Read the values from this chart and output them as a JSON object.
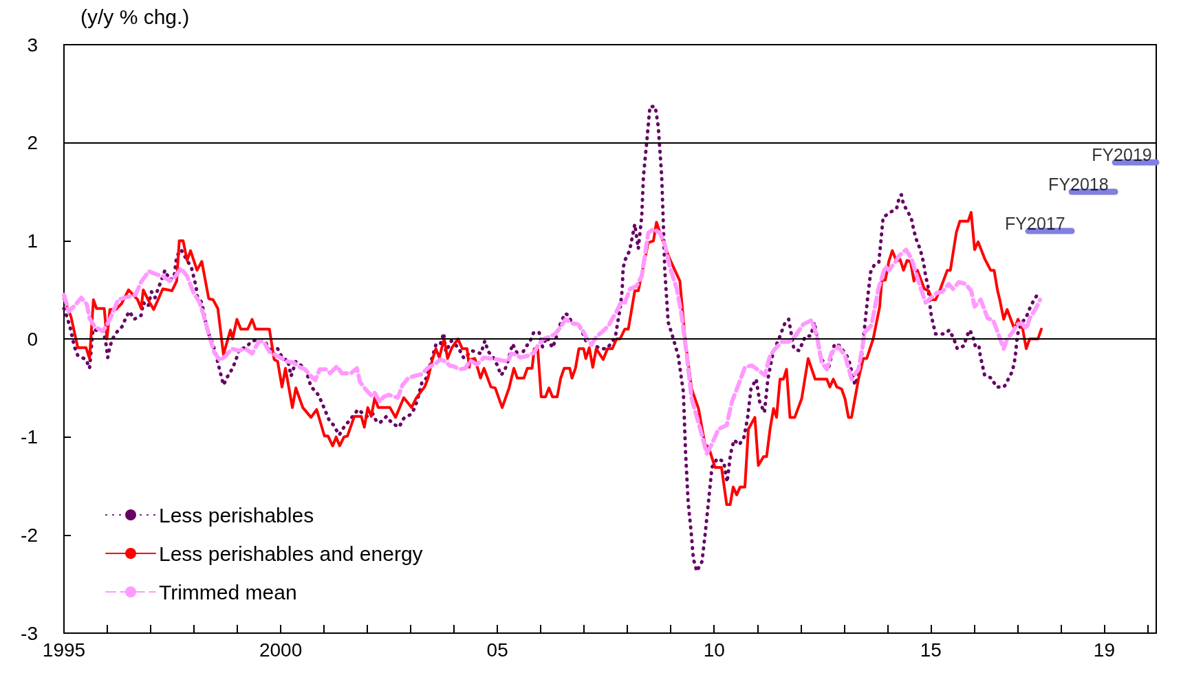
{
  "chart_data": {
    "type": "line",
    "ylabel": "(y/y % chg.)",
    "xlim": [
      1995,
      2020.2
    ],
    "ylim": [
      -3,
      3
    ],
    "yticks": [
      -3,
      -2,
      -1,
      0,
      1,
      2,
      3
    ],
    "xticks": [
      {
        "value": 1995,
        "label": "1995"
      },
      {
        "value": 1996,
        "label": null
      },
      {
        "value": 1997,
        "label": null
      },
      {
        "value": 1998,
        "label": null
      },
      {
        "value": 1999,
        "label": null
      },
      {
        "value": 2000,
        "label": "2000"
      },
      {
        "value": 2001,
        "label": null
      },
      {
        "value": 2002,
        "label": null
      },
      {
        "value": 2003,
        "label": null
      },
      {
        "value": 2004,
        "label": null
      },
      {
        "value": 2005,
        "label": "05"
      },
      {
        "value": 2006,
        "label": null
      },
      {
        "value": 2007,
        "label": null
      },
      {
        "value": 2008,
        "label": null
      },
      {
        "value": 2009,
        "label": null
      },
      {
        "value": 2010,
        "label": "10"
      },
      {
        "value": 2011,
        "label": null
      },
      {
        "value": 2012,
        "label": null
      },
      {
        "value": 2013,
        "label": null
      },
      {
        "value": 2014,
        "label": null
      },
      {
        "value": 2015,
        "label": "15"
      },
      {
        "value": 2016,
        "label": null
      },
      {
        "value": 2017,
        "label": null
      },
      {
        "value": 2018,
        "label": null
      },
      {
        "value": 2019,
        "label": "19"
      },
      {
        "value": 2020,
        "label": null
      }
    ],
    "grid": false,
    "legend": "bottom left",
    "marker": "none",
    "ref_lines": [
      {
        "axis": "y",
        "value": 0,
        "color": "#000000"
      },
      {
        "axis": "y",
        "value": 2,
        "color": "#000000"
      }
    ],
    "annotations": [
      {
        "text": "FY2017",
        "x": 2017.25,
        "y": 1.1
      },
      {
        "text": "FY2018",
        "x": 2018.25,
        "y": 1.5
      },
      {
        "text": "FY2019",
        "x": 2019.25,
        "y": 1.8
      }
    ],
    "series": [
      {
        "name": "Less perishables",
        "color": "#660066",
        "line_style": "dotted",
        "x": [
          1995.0,
          1995.08,
          1995.14,
          1995.24,
          1995.32,
          1995.51,
          1995.59,
          1995.63,
          1995.67,
          1995.8,
          1995.9,
          1995.96,
          1996.01,
          1996.06,
          1996.12,
          1996.22,
          1996.35,
          1996.43,
          1996.51,
          1996.62,
          1996.78,
          1996.83,
          1996.94,
          1997.02,
          1997.1,
          1997.17,
          1997.25,
          1997.33,
          1997.44,
          1997.54,
          1997.6,
          1997.7,
          1997.84,
          1997.94,
          1997.99,
          1998.05,
          1998.07,
          1998.18,
          1998.26,
          1998.31,
          1998.39,
          1998.49,
          1998.6,
          1998.68,
          1998.79,
          1998.89,
          1998.97,
          1999.05,
          1999.19,
          1999.32,
          1999.48,
          1999.64,
          1999.74,
          1999.85,
          1999.93,
          2000.06,
          2000.16,
          2000.24,
          2000.35,
          2000.56,
          2000.64,
          2000.7,
          2000.8,
          2000.88,
          2000.96,
          2001.12,
          2001.22,
          2001.35,
          2001.46,
          2001.7,
          2001.78,
          2001.99,
          2002.12,
          2002.22,
          2002.3,
          2002.44,
          2002.57,
          2002.73,
          2002.84,
          2003.0,
          2003.07,
          2003.15,
          2003.26,
          2003.36,
          2003.47,
          2003.58,
          2003.68,
          2003.76,
          2003.81,
          2003.94,
          2004.1,
          2004.23,
          2004.41,
          2004.62,
          2004.71,
          2004.79,
          2004.92,
          2005.01,
          2005.08,
          2005.16,
          2005.24,
          2005.35,
          2005.45,
          2005.53,
          2005.64,
          2005.75,
          2005.83,
          2005.96,
          2006.04,
          2006.14,
          2006.27,
          2006.35,
          2006.4,
          2006.56,
          2006.64,
          2006.72,
          2006.88,
          2006.96,
          2007.04,
          2007.17,
          2007.38,
          2007.51,
          2007.62,
          2007.72,
          2007.83,
          2007.86,
          2007.88,
          2007.9,
          2007.94,
          2008.05,
          2008.17,
          2008.25,
          2008.33,
          2008.37,
          2008.45,
          2008.52,
          2008.64,
          2008.71,
          2008.79,
          2008.83,
          2008.86,
          2008.94,
          2009.06,
          2009.17,
          2009.29,
          2009.34,
          2009.4,
          2009.47,
          2009.52,
          2009.6,
          2009.72,
          2009.79,
          2009.87,
          2009.95,
          2010.07,
          2010.22,
          2010.3,
          2010.38,
          2010.46,
          2010.58,
          2010.69,
          2010.77,
          2010.85,
          2010.97,
          2011.05,
          2011.16,
          2011.24,
          2011.36,
          2011.52,
          2011.64,
          2011.72,
          2011.84,
          2011.96,
          2012.11,
          2012.23,
          2012.31,
          2012.47,
          2012.63,
          2012.78,
          2012.9,
          2013.1,
          2013.25,
          2013.37,
          2013.45,
          2013.53,
          2013.61,
          2013.69,
          2013.8,
          2013.9,
          2014.06,
          2014.21,
          2014.27,
          2014.32,
          2014.37,
          2014.48,
          2014.56,
          2014.6,
          2014.66,
          2014.74,
          2014.8,
          2014.85,
          2014.88,
          2014.93,
          2014.98,
          2015.01,
          2015.06,
          2015.11,
          2015.3,
          2015.43,
          2015.53,
          2015.61,
          2015.77,
          2015.82,
          2015.9,
          2015.98,
          2016.03,
          2016.11,
          2016.14,
          2016.19,
          2016.24,
          2016.4,
          2016.51,
          2016.69,
          2016.8,
          2016.88,
          2016.93,
          2016.96,
          2016.98,
          2017.01,
          2017.09,
          2017.2,
          2017.28,
          2017.38,
          2017.49
        ],
        "values": [
          0.31,
          0.21,
          0.12,
          -0.08,
          -0.17,
          -0.21,
          -0.3,
          -0.1,
          0.1,
          0.08,
          0.08,
          -0.02,
          -0.19,
          -0.08,
          0,
          0.07,
          0.13,
          0.22,
          0.28,
          0.2,
          0.24,
          0.37,
          0.33,
          0.48,
          0.42,
          0.51,
          0.6,
          0.7,
          0.6,
          0.63,
          0.84,
          0.91,
          0.8,
          0.73,
          0.64,
          0.53,
          0.44,
          0.37,
          0.19,
          0.08,
          0,
          -0.13,
          -0.33,
          -0.47,
          -0.37,
          -0.3,
          -0.21,
          -0.1,
          -0.09,
          -0.03,
          0,
          -0.03,
          -0.1,
          -0.16,
          -0.1,
          -0.21,
          -0.21,
          -0.38,
          -0.23,
          -0.3,
          -0.4,
          -0.49,
          -0.53,
          -0.58,
          -0.66,
          -0.83,
          -0.88,
          -0.98,
          -0.9,
          -0.77,
          -0.72,
          -0.79,
          -0.76,
          -0.85,
          -0.85,
          -0.79,
          -0.86,
          -0.9,
          -0.81,
          -0.77,
          -0.72,
          -0.63,
          -0.44,
          -0.4,
          -0.23,
          -0.06,
          -0.06,
          0.06,
          -0.13,
          -0.02,
          -0.09,
          -0.2,
          -0.12,
          -0.15,
          -0.02,
          -0.13,
          -0.2,
          -0.28,
          -0.37,
          -0.33,
          -0.23,
          -0.05,
          -0.14,
          -0.19,
          -0.09,
          -0.03,
          0.06,
          0.07,
          -0.08,
          0.02,
          -0.09,
          0,
          0.1,
          0.26,
          0.24,
          0.16,
          0.14,
          0.07,
          -0.02,
          -0.05,
          -0.1,
          -0.1,
          -0.05,
          0.02,
          0.31,
          0.42,
          0.51,
          0.72,
          0.8,
          0.9,
          1.17,
          0.92,
          1.25,
          1.66,
          2.03,
          2.37,
          2.37,
          2.17,
          1.66,
          1.15,
          0.71,
          0.17,
          0,
          -0.17,
          -0.54,
          -1.15,
          -1.66,
          -1.97,
          -2.24,
          -2.37,
          -2.27,
          -2.0,
          -1.66,
          -1.31,
          -1.22,
          -1.25,
          -1.46,
          -1.17,
          -1.03,
          -1.08,
          -1.0,
          -0.81,
          -0.51,
          -0.41,
          -0.64,
          -0.75,
          -0.41,
          -0.14,
          0.03,
          0.17,
          0.2,
          -0.1,
          -0.12,
          0.03,
          0.03,
          0.17,
          -0.2,
          -0.31,
          -0.05,
          -0.07,
          -0.2,
          -0.47,
          -0.32,
          0.03,
          0.37,
          0.68,
          0.75,
          0.78,
          1.24,
          1.29,
          1.33,
          1.44,
          1.47,
          1.37,
          1.29,
          1.21,
          1.12,
          1.02,
          0.93,
          0.84,
          0.73,
          0.64,
          0.55,
          0.34,
          0.24,
          0.14,
          0.05,
          0.05,
          0.09,
          0,
          -0.1,
          -0.07,
          0.02,
          0.09,
          0.01,
          -0.08,
          -0.07,
          -0.17,
          -0.27,
          -0.37,
          -0.4,
          -0.49,
          -0.49,
          -0.4,
          -0.33,
          -0.23,
          -0.13,
          -0.03,
          0.06,
          0.16,
          0.22,
          0.31,
          0.4,
          0.47
        ]
      },
      {
        "name": "Less perishables and energy",
        "color": "#ff0000",
        "line_style": "solid",
        "x": [
          1995.0,
          1995.16,
          1995.32,
          1995.51,
          1995.59,
          1995.68,
          1995.75,
          1995.93,
          1995.99,
          1996.06,
          1996.2,
          1996.33,
          1996.49,
          1996.7,
          1996.78,
          1996.83,
          1996.94,
          1997.07,
          1997.28,
          1997.41,
          1997.49,
          1997.6,
          1997.66,
          1997.75,
          1997.84,
          1997.92,
          1998.07,
          1998.18,
          1998.34,
          1998.44,
          1998.55,
          1998.68,
          1998.84,
          1998.89,
          1998.99,
          1999.08,
          1999.24,
          1999.34,
          1999.42,
          1999.74,
          1999.85,
          1999.93,
          2000.03,
          2000.11,
          2000.27,
          2000.35,
          2000.51,
          2000.7,
          2000.83,
          2001.01,
          2001.09,
          2001.2,
          2001.28,
          2001.36,
          2001.46,
          2001.54,
          2001.7,
          2001.86,
          2001.93,
          2002.01,
          2002.09,
          2002.17,
          2002.25,
          2002.52,
          2002.65,
          2002.84,
          2003.02,
          2003.13,
          2003.32,
          2003.4,
          2003.5,
          2003.58,
          2003.66,
          2003.77,
          2003.85,
          2003.95,
          2004.09,
          2004.19,
          2004.3,
          2004.35,
          2004.37,
          2004.48,
          2004.61,
          2004.69,
          2004.85,
          2004.95,
          2005.11,
          2005.27,
          2005.38,
          2005.46,
          2005.61,
          2005.69,
          2005.8,
          2005.85,
          2005.93,
          2006.01,
          2006.11,
          2006.19,
          2006.27,
          2006.38,
          2006.46,
          2006.54,
          2006.67,
          2006.72,
          2006.8,
          2006.88,
          2006.99,
          2007.04,
          2007.12,
          2007.2,
          2007.28,
          2007.44,
          2007.54,
          2007.65,
          2007.75,
          2007.83,
          2007.94,
          2008.02,
          2008.17,
          2008.25,
          2008.48,
          2008.6,
          2008.67,
          2008.79,
          2008.98,
          2009.21,
          2009.33,
          2009.48,
          2009.64,
          2009.79,
          2009.87,
          2010.02,
          2010.17,
          2010.29,
          2010.37,
          2010.44,
          2010.52,
          2010.6,
          2010.71,
          2010.79,
          2010.94,
          2011.02,
          2011.14,
          2011.21,
          2011.29,
          2011.37,
          2011.44,
          2011.52,
          2011.6,
          2011.67,
          2011.75,
          2011.86,
          2012.02,
          2012.17,
          2012.33,
          2012.6,
          2012.67,
          2012.75,
          2012.83,
          2012.94,
          2013.02,
          2013.1,
          2013.17,
          2013.33,
          2013.44,
          2013.52,
          2013.67,
          2013.82,
          2013.87,
          2013.95,
          2014.03,
          2014.11,
          2014.21,
          2014.29,
          2014.37,
          2014.45,
          2014.53,
          2014.61,
          2014.69,
          2014.85,
          2014.95,
          2015.03,
          2015.11,
          2015.22,
          2015.38,
          2015.45,
          2015.59,
          2015.67,
          2015.86,
          2015.93,
          2016.01,
          2016.09,
          2016.25,
          2016.38,
          2016.46,
          2016.54,
          2016.59,
          2016.68,
          2016.76,
          2016.93,
          2017.01,
          2017.12,
          2017.2,
          2017.28,
          2017.47,
          2017.55
        ],
        "values": [
          0.41,
          0.23,
          -0.09,
          -0.09,
          -0.2,
          0.4,
          0.31,
          0.31,
          0,
          0.3,
          0.3,
          0.36,
          0.5,
          0.4,
          0.31,
          0.5,
          0.4,
          0.3,
          0.51,
          0.5,
          0.49,
          0.59,
          1.0,
          1.0,
          0.8,
          0.9,
          0.7,
          0.79,
          0.41,
          0.4,
          0.31,
          -0.16,
          0.09,
          0,
          0.2,
          0.1,
          0.1,
          0.2,
          0.1,
          0.1,
          -0.21,
          -0.23,
          -0.49,
          -0.3,
          -0.7,
          -0.5,
          -0.7,
          -0.8,
          -0.72,
          -0.99,
          -0.99,
          -1.09,
          -1.0,
          -1.09,
          -1.0,
          -0.99,
          -0.79,
          -0.79,
          -0.9,
          -0.7,
          -0.79,
          -0.6,
          -0.7,
          -0.7,
          -0.8,
          -0.6,
          -0.7,
          -0.6,
          -0.49,
          -0.4,
          -0.21,
          -0.1,
          -0.19,
          0,
          -0.2,
          -0.09,
          0,
          -0.1,
          -0.1,
          -0.29,
          -0.21,
          -0.2,
          -0.4,
          -0.3,
          -0.49,
          -0.5,
          -0.7,
          -0.5,
          -0.3,
          -0.4,
          -0.4,
          -0.3,
          -0.3,
          -0.1,
          -0.1,
          -0.59,
          -0.59,
          -0.5,
          -0.59,
          -0.59,
          -0.4,
          -0.3,
          -0.3,
          -0.4,
          -0.3,
          -0.1,
          -0.1,
          -0.2,
          -0.09,
          -0.29,
          -0.1,
          -0.21,
          -0.1,
          -0.1,
          0,
          0,
          0.1,
          0.1,
          0.49,
          0.49,
          0.98,
          1.0,
          1.19,
          1.03,
          0.81,
          0.59,
          0,
          -0.51,
          -0.71,
          -1.08,
          -1.1,
          -1.31,
          -1.31,
          -1.69,
          -1.69,
          -1.51,
          -1.59,
          -1.51,
          -1.51,
          -0.92,
          -0.8,
          -1.29,
          -1.2,
          -1.2,
          -0.92,
          -0.71,
          -0.8,
          -0.41,
          -0.41,
          -0.31,
          -0.8,
          -0.8,
          -0.61,
          -0.2,
          -0.41,
          -0.41,
          -0.49,
          -0.41,
          -0.49,
          -0.51,
          -0.61,
          -0.8,
          -0.8,
          -0.41,
          -0.2,
          -0.2,
          0,
          0.33,
          0.6,
          0.6,
          0.79,
          0.9,
          0.79,
          0.81,
          0.7,
          0.8,
          0.79,
          0.59,
          0.7,
          0.51,
          0.49,
          0.4,
          0.4,
          0.51,
          0.7,
          0.7,
          1.09,
          1.2,
          1.2,
          1.29,
          0.91,
          0.99,
          0.81,
          0.7,
          0.7,
          0.49,
          0.4,
          0.2,
          0.3,
          0.1,
          0.2,
          0.1,
          -0.1,
          0,
          0,
          0.1
        ]
      },
      {
        "name": "Trimmed mean",
        "color": "#ff99ff",
        "line_style": "dashed",
        "x": [
          1995.0,
          1995.11,
          1995.27,
          1995.4,
          1995.53,
          1995.59,
          1995.72,
          1995.9,
          1996.01,
          1996.12,
          1996.25,
          1996.41,
          1996.65,
          1996.78,
          1996.96,
          1997.12,
          1997.28,
          1997.44,
          1997.54,
          1997.7,
          1997.84,
          1997.99,
          1998.13,
          1998.23,
          1998.34,
          1998.47,
          1998.6,
          1998.74,
          1998.87,
          1999.03,
          1999.19,
          1999.34,
          1999.5,
          1999.61,
          1999.74,
          1999.9,
          2000.03,
          2000.14,
          2000.29,
          2000.45,
          2000.56,
          2000.7,
          2000.8,
          2000.9,
          2001.04,
          2001.14,
          2001.3,
          2001.41,
          2001.62,
          2001.76,
          2001.83,
          2001.97,
          2002.1,
          2002.17,
          2002.28,
          2002.38,
          2002.49,
          2002.7,
          2002.81,
          2002.94,
          2003.07,
          2003.25,
          2003.41,
          2003.55,
          2003.68,
          2003.81,
          2003.89,
          2003.99,
          2004.13,
          2004.26,
          2004.37,
          2004.53,
          2004.69,
          2004.85,
          2005.01,
          2005.11,
          2005.24,
          2005.32,
          2005.43,
          2005.53,
          2005.72,
          2005.85,
          2005.93,
          2006.06,
          2006.19,
          2006.33,
          2006.46,
          2006.57,
          2006.72,
          2006.86,
          2006.99,
          2007.07,
          2007.17,
          2007.28,
          2007.44,
          2007.57,
          2007.67,
          2007.75,
          2007.86,
          2007.94,
          2008.06,
          2008.21,
          2008.33,
          2008.48,
          2008.6,
          2008.75,
          2008.87,
          2008.98,
          2009.14,
          2009.25,
          2009.37,
          2009.48,
          2009.68,
          2009.83,
          2009.95,
          2010.1,
          2010.29,
          2010.41,
          2010.56,
          2010.71,
          2010.87,
          2011.02,
          2011.17,
          2011.29,
          2011.41,
          2011.56,
          2011.72,
          2011.87,
          2012.06,
          2012.25,
          2012.37,
          2012.48,
          2012.6,
          2012.71,
          2012.87,
          2013.02,
          2013.17,
          2013.33,
          2013.48,
          2013.63,
          2013.79,
          2013.95,
          2014.03,
          2014.19,
          2014.27,
          2014.43,
          2014.56,
          2014.67,
          2014.77,
          2014.88,
          2015.01,
          2015.14,
          2015.27,
          2015.41,
          2015.51,
          2015.65,
          2015.8,
          2015.93,
          2016.01,
          2016.15,
          2016.31,
          2016.44,
          2016.54,
          2016.68,
          2016.76,
          2016.89,
          2016.99,
          2017.1,
          2017.2,
          2017.28,
          2017.42,
          2017.52
        ],
        "values": [
          0.45,
          0.28,
          0.35,
          0.42,
          0.35,
          0.21,
          0.12,
          0.08,
          0.16,
          0.26,
          0.4,
          0.42,
          0.45,
          0.58,
          0.69,
          0.66,
          0.64,
          0.59,
          0.62,
          0.72,
          0.64,
          0.47,
          0.37,
          0.23,
          0.05,
          -0.14,
          -0.22,
          -0.17,
          -0.1,
          -0.12,
          -0.1,
          -0.15,
          -0.02,
          -0.03,
          -0.13,
          -0.17,
          -0.2,
          -0.23,
          -0.24,
          -0.29,
          -0.31,
          -0.38,
          -0.42,
          -0.31,
          -0.31,
          -0.35,
          -0.28,
          -0.35,
          -0.35,
          -0.3,
          -0.44,
          -0.52,
          -0.58,
          -0.55,
          -0.64,
          -0.59,
          -0.57,
          -0.6,
          -0.47,
          -0.4,
          -0.38,
          -0.36,
          -0.29,
          -0.26,
          -0.21,
          -0.23,
          -0.27,
          -0.28,
          -0.31,
          -0.3,
          -0.22,
          -0.26,
          -0.19,
          -0.2,
          -0.21,
          -0.22,
          -0.23,
          -0.15,
          -0.16,
          -0.19,
          -0.17,
          -0.14,
          -0.07,
          0,
          0.02,
          0.05,
          0.12,
          0.2,
          0.16,
          0.15,
          0.07,
          0,
          -0.06,
          0.02,
          0.08,
          0.14,
          0.22,
          0.28,
          0.38,
          0.37,
          0.51,
          0.54,
          0.64,
          1.08,
          1.12,
          1.08,
          0.95,
          0.73,
          0.51,
          0.24,
          -0.17,
          -0.61,
          -0.92,
          -1.17,
          -1.07,
          -0.92,
          -0.88,
          -0.64,
          -0.47,
          -0.29,
          -0.27,
          -0.32,
          -0.37,
          -0.17,
          -0.1,
          -0.03,
          -0.03,
          0.03,
          0.15,
          0.19,
          0.03,
          -0.24,
          -0.31,
          -0.14,
          -0.08,
          -0.17,
          -0.41,
          -0.31,
          0.07,
          0.14,
          0.51,
          0.74,
          0.7,
          0.79,
          0.85,
          0.91,
          0.81,
          0.65,
          0.51,
          0.37,
          0.42,
          0.47,
          0.48,
          0.56,
          0.51,
          0.58,
          0.56,
          0.49,
          0.33,
          0.4,
          0.21,
          0.19,
          0.07,
          -0.1,
          0,
          0.07,
          0.15,
          0.16,
          0.1,
          0.21,
          0.31,
          0.4
        ]
      },
      {
        "color": "#8080e0",
        "line_style": "solid",
        "x": [
          2017.25,
          2018.25
        ],
        "values": [
          1.1,
          1.1
        ]
      },
      {
        "color": "#8080e0",
        "line_style": "solid",
        "x": [
          2018.25,
          2019.25
        ],
        "values": [
          1.5,
          1.5
        ]
      },
      {
        "color": "#8080e0",
        "line_style": "solid",
        "x": [
          2019.25,
          2020.2
        ],
        "values": [
          1.8,
          1.8
        ]
      }
    ]
  }
}
